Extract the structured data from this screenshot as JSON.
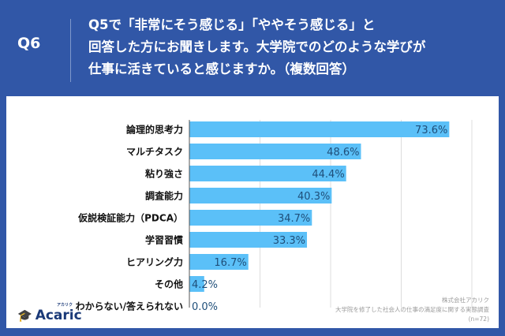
{
  "header": {
    "qnum": "Q6",
    "title_lines": [
      "Q5で「非常にそう感じる」「ややそう感じる」と",
      "回答した方にお聞きします。大学院でのどのような学びが",
      "仕事に活きていると感じますか。（複数回答）"
    ]
  },
  "chart_data": {
    "type": "bar",
    "orientation": "horizontal",
    "categories": [
      "論理的思考力",
      "マルチタスク",
      "粘り強さ",
      "調査能力",
      "仮説検証能力（PDCA）",
      "学習習慣",
      "ヒアリング力",
      "その他",
      "わからない/答えられない"
    ],
    "values": [
      73.6,
      48.6,
      44.4,
      40.3,
      34.7,
      33.3,
      16.7,
      4.2,
      0.0
    ],
    "labels": [
      "73.6%",
      "48.6%",
      "44.4%",
      "40.3%",
      "34.7%",
      "33.3%",
      "16.7%",
      "4.2%",
      "0.0%"
    ],
    "xlim": [
      0,
      80
    ],
    "grid": true,
    "bar_color": "#5bc0f8",
    "label_color": "#1f4e79"
  },
  "footer": {
    "company": "株式会社アカリク",
    "survey": "大学院を修了した社会人の仕事の満足度に関する実態調査",
    "n": "(n=72)",
    "logo_text": "Acaric",
    "logo_kana": "アカリク"
  }
}
